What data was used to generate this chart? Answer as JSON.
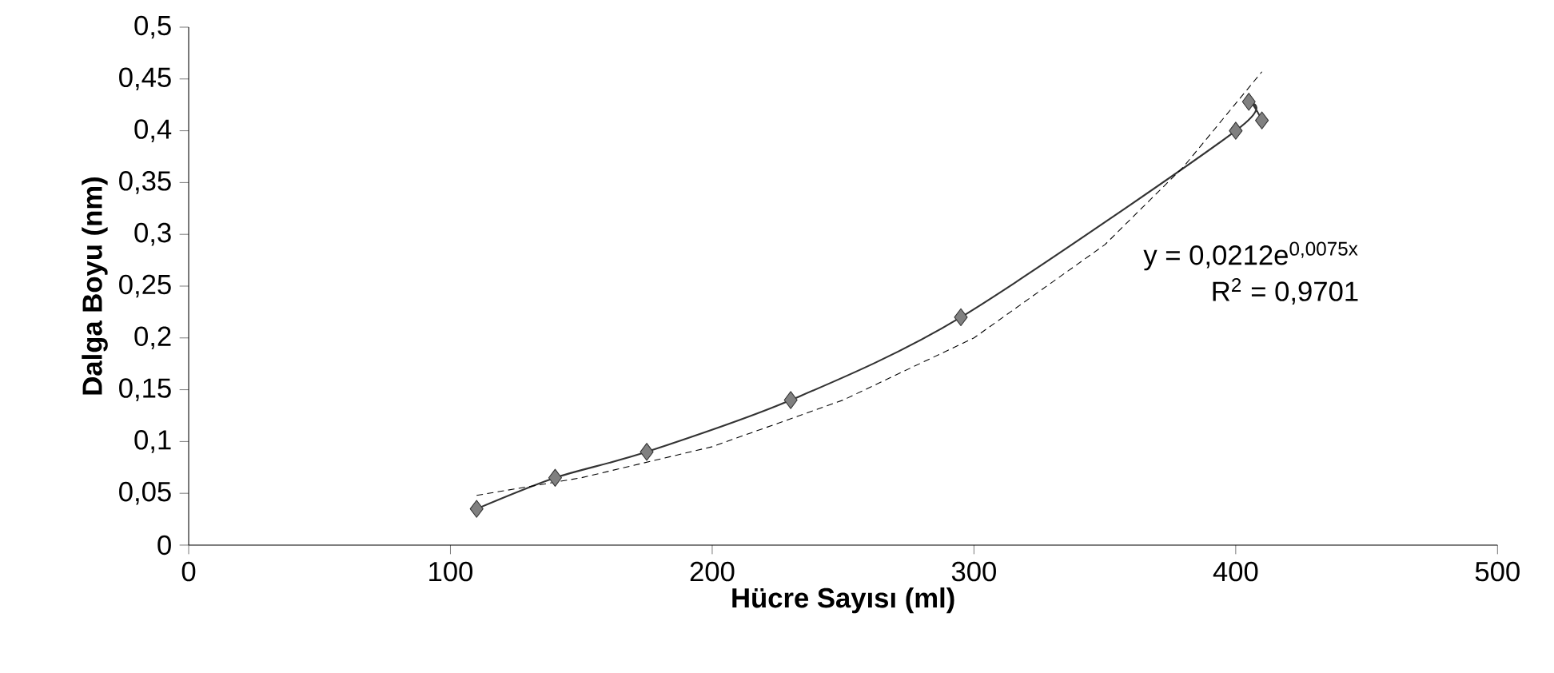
{
  "chart_data": {
    "type": "line",
    "xlabel": "Hücre Sayısı (ml)",
    "ylabel": "Dalga Boyu (nm)",
    "xlim": [
      0,
      500
    ],
    "xticks": [
      0,
      100,
      200,
      300,
      400,
      500
    ],
    "ylim": [
      0,
      0.5
    ],
    "yticks": [
      {
        "value": 0,
        "label": "0"
      },
      {
        "value": 0.05,
        "label": "0,05"
      },
      {
        "value": 0.1,
        "label": "0,1"
      },
      {
        "value": 0.15,
        "label": "0,15"
      },
      {
        "value": 0.2,
        "label": "0,2"
      },
      {
        "value": 0.25,
        "label": "0,25"
      },
      {
        "value": 0.3,
        "label": "0,3"
      },
      {
        "value": 0.35,
        "label": "0,35"
      },
      {
        "value": 0.4,
        "label": "0,4"
      },
      {
        "value": 0.45,
        "label": "0,45"
      },
      {
        "value": 0.5,
        "label": "0,5"
      }
    ],
    "series": [
      {
        "color": "#333333",
        "marker": "diamond",
        "line_style": "solid",
        "x": [
          110,
          140,
          175,
          230,
          295,
          400,
          405,
          410
        ],
        "values": [
          0.035,
          0.065,
          0.09,
          0.14,
          0.22,
          0.4,
          0.428,
          0.41
        ]
      },
      {
        "color": "#000000",
        "marker": "none",
        "line_style": "dashed",
        "x": [
          110,
          150,
          200,
          250,
          300,
          350,
          380,
          410
        ],
        "values": [
          0.048,
          0.065,
          0.095,
          0.14,
          0.2,
          0.29,
          0.365,
          0.457
        ]
      }
    ],
    "annotations": [
      "y = 0,0212e$^{0,0075x}$",
      "R$^{2}$ = 0,9701"
    ]
  }
}
